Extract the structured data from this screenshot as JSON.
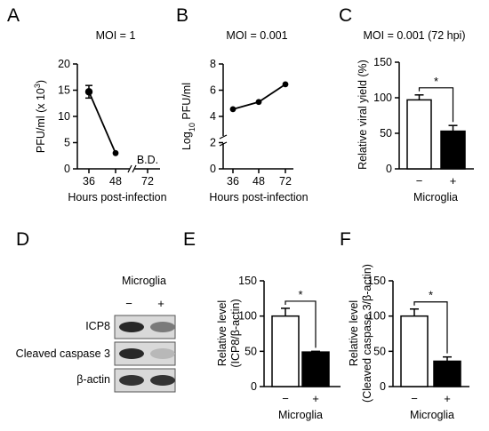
{
  "panels": {
    "A": {
      "letter": "A"
    },
    "B": {
      "letter": "B"
    },
    "C": {
      "letter": "C"
    },
    "D": {
      "letter": "D"
    },
    "E": {
      "letter": "E"
    },
    "F": {
      "letter": "F"
    }
  },
  "blot": {
    "header": "Microglia",
    "lanes": [
      "−",
      "+"
    ],
    "rows": [
      {
        "label": "ICP8",
        "intensity": [
          0.95,
          0.55
        ]
      },
      {
        "label": "Cleaved caspase 3",
        "intensity": [
          0.95,
          0.25
        ]
      },
      {
        "label": "β-actin",
        "intensity": [
          0.9,
          0.9
        ]
      }
    ]
  },
  "chart_data": [
    {
      "panel": "A",
      "type": "line",
      "title": "MOI = 1",
      "xlabel": "Hours post-infection",
      "ylabel": "PFU/ml (x 10³)",
      "categories": [
        "36",
        "48",
        "72"
      ],
      "series": [
        {
          "values": [
            14.7,
            3.0,
            null
          ],
          "errors": [
            1.2,
            0,
            null
          ]
        }
      ],
      "annotations": [
        "B.D."
      ],
      "ylim": [
        0,
        20
      ],
      "yticks": [
        "0",
        "5",
        "10",
        "15",
        "20"
      ],
      "axis_break": "x"
    },
    {
      "panel": "B",
      "type": "line",
      "title": "MOI = 0.001",
      "xlabel": "Hours post-infection",
      "ylabel": "Log₁₀ PFU/ml",
      "categories": [
        "36",
        "48",
        "72"
      ],
      "series": [
        {
          "values": [
            4.55,
            5.1,
            6.45
          ]
        }
      ],
      "ylim": [
        0,
        8
      ],
      "yticks": [
        "0",
        "2",
        "4",
        "6",
        "8"
      ],
      "axis_break": "y"
    },
    {
      "panel": "C",
      "type": "bar",
      "title": "MOI = 0.001 (72 hpi)",
      "xlabel": "Microglia",
      "ylabel": "Relative viral yield (%)",
      "categories": [
        "−",
        "+"
      ],
      "values": [
        97,
        53
      ],
      "errors": [
        7,
        8
      ],
      "ylim": [
        0,
        150
      ],
      "yticks": [
        "0",
        "50",
        "100",
        "150"
      ],
      "significance": "*"
    },
    {
      "panel": "E",
      "type": "bar",
      "title": "",
      "xlabel": "Microglia",
      "ylabel": "Relative level (ICP8/β-actin)",
      "categories": [
        "−",
        "+"
      ],
      "values": [
        100,
        49
      ],
      "errors": [
        11,
        1
      ],
      "ylim": [
        0,
        150
      ],
      "yticks": [
        "0",
        "50",
        "100",
        "150"
      ],
      "significance": "*"
    },
    {
      "panel": "F",
      "type": "bar",
      "title": "",
      "xlabel": "Microglia",
      "ylabel": "Relative level (Cleaved caspase 3/β-actin)",
      "categories": [
        "−",
        "+"
      ],
      "values": [
        100,
        36
      ],
      "errors": [
        10,
        6
      ],
      "ylim": [
        0,
        150
      ],
      "yticks": [
        "0",
        "50",
        "100",
        "150"
      ],
      "significance": "*"
    }
  ]
}
